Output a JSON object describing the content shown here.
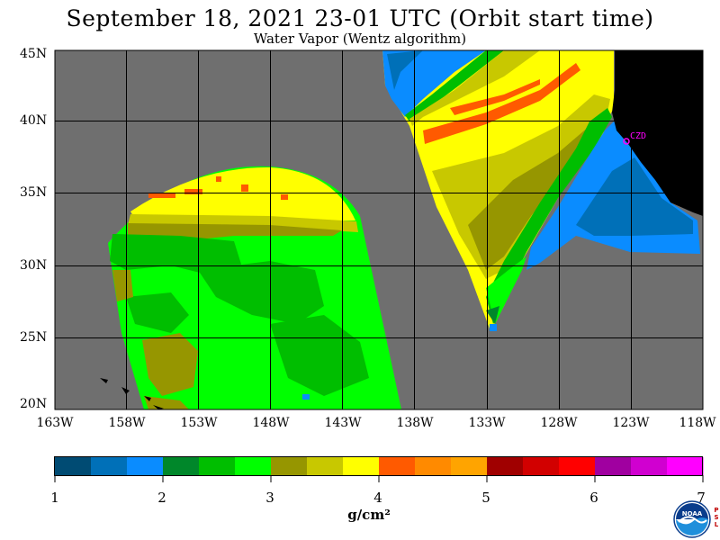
{
  "title": "September 18, 2021  23-01 UTC  (Orbit start time)",
  "subtitle": "Water Vapor (Wentz algorithm)",
  "lat_labels": [
    "45N",
    "40N",
    "35N",
    "30N",
    "25N",
    "20N"
  ],
  "lon_labels": [
    "163W",
    "158W",
    "153W",
    "148W",
    "143W",
    "138W",
    "133W",
    "128W",
    "123W",
    "118W"
  ],
  "station_label": "CZD",
  "colorbar": {
    "tick_labels": [
      "1",
      "2",
      "3",
      "4",
      "5",
      "6",
      "7"
    ],
    "units": "g/cm²",
    "colors": [
      "#004b73",
      "#0070b8",
      "#0a8cff",
      "#00872a",
      "#00be00",
      "#00ff00",
      "#969600",
      "#c8c800",
      "#ffff00",
      "#ff5a00",
      "#ff8a00",
      "#ffa400",
      "#a00000",
      "#d20000",
      "#ff0000",
      "#a000a0",
      "#d000d0",
      "#ff00ff"
    ]
  },
  "colors": {
    "no_data": "#6f6f6f",
    "land": "#000000",
    "grid": "#000000"
  },
  "logo": {
    "name": "NOAA",
    "side_text": "PSL"
  }
}
